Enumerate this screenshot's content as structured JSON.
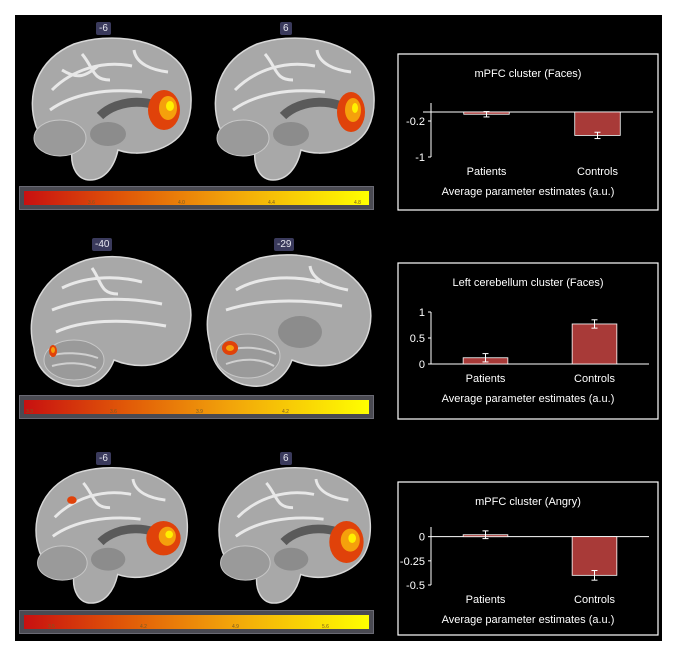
{
  "colors": {
    "bar": "#a83a38",
    "background": "#000000",
    "text": "#ffffff"
  },
  "rows": [
    {
      "slice_labels": [
        "-6",
        "6"
      ],
      "colorbar_ticks": [
        "3.6",
        "4.0",
        "4.4",
        "4.8"
      ]
    },
    {
      "slice_labels": [
        "-40",
        "-29"
      ],
      "colorbar_ticks": [
        "3.3",
        "3.6",
        "3.9",
        "4.2"
      ]
    },
    {
      "slice_labels": [
        "-6",
        "6"
      ],
      "colorbar_ticks": [
        "3.5",
        "4.2",
        "4.9",
        "5.6"
      ]
    }
  ],
  "chart_data": [
    {
      "type": "bar",
      "title": "mPFC cluster (Faces)",
      "categories": [
        "Patients",
        "Controls"
      ],
      "values": [
        -0.05,
        -0.52
      ],
      "errors": [
        0.06,
        0.07
      ],
      "ylim": [
        -1,
        0.2
      ],
      "yticks": [
        -0.2,
        -1
      ],
      "ytick_labels": [
        "-0.2",
        "-1"
      ],
      "xlabel": "Average parameter estimates (a.u.)",
      "ylabel": ""
    },
    {
      "type": "bar",
      "title": "Left cerebellum cluster (Faces)",
      "categories": [
        "Patients",
        "Controls"
      ],
      "values": [
        0.12,
        0.77
      ],
      "errors": [
        0.08,
        0.08
      ],
      "ylim": [
        0,
        1
      ],
      "yticks": [
        0,
        0.5,
        1
      ],
      "ytick_labels": [
        "0",
        "0.5",
        "1"
      ],
      "xlabel": "Average parameter estimates (a.u.)",
      "ylabel": ""
    },
    {
      "type": "bar",
      "title": "mPFC cluster (Angry)",
      "categories": [
        "Patients",
        "Controls"
      ],
      "values": [
        0.02,
        -0.4
      ],
      "errors": [
        0.04,
        0.05
      ],
      "ylim": [
        -0.5,
        0.1
      ],
      "yticks": [
        0,
        -0.25,
        -0.5
      ],
      "ytick_labels": [
        "0",
        "-0.25",
        "-0.5"
      ],
      "xlabel": "Average parameter estimates (a.u.)",
      "ylabel": ""
    }
  ]
}
